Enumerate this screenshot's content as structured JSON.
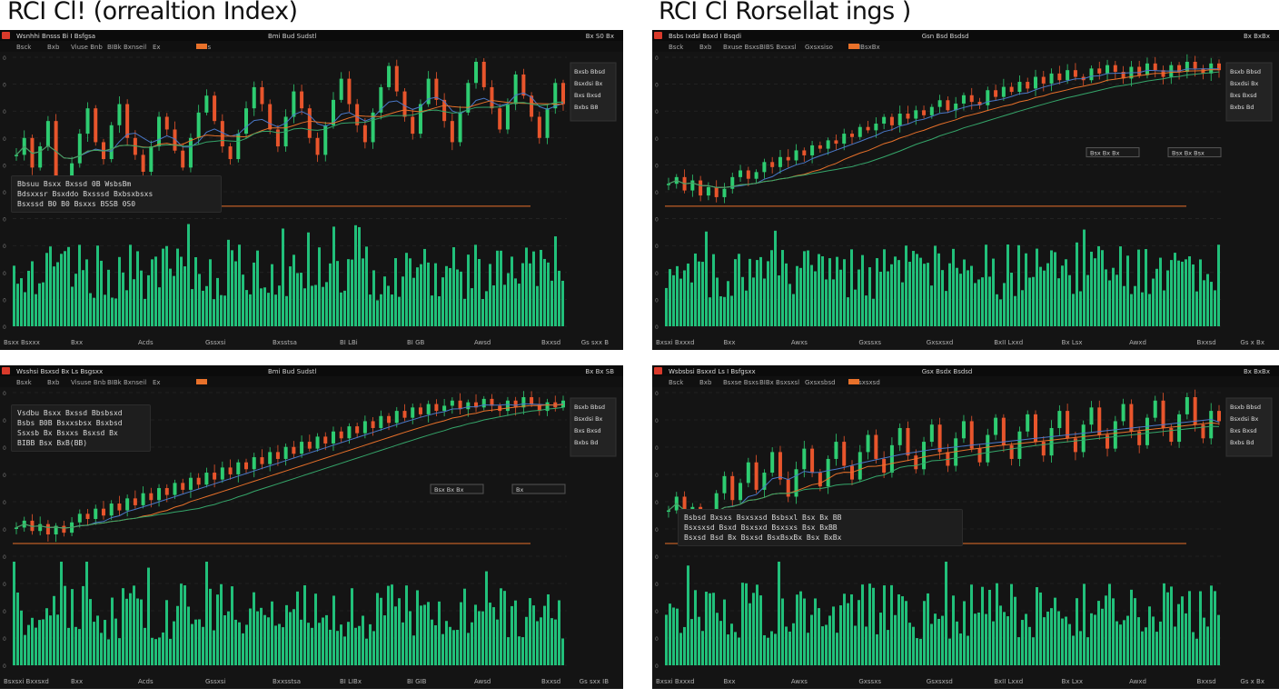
{
  "page": {
    "title_left": "RCI Cl! (orrealtion Index)",
    "title_right": "RCI Cl Rorsellat ings )"
  },
  "colors": {
    "background": "#141414",
    "toolbar": "#0b0b0b",
    "up": "#2ecc71",
    "down": "#e8552c",
    "volume": "#21c07a",
    "ma_blue": "#4a78c8",
    "ma_orange": "#e8712a",
    "ma_yellow": "#d7b33a",
    "ma_green": "#35a66a",
    "grid": "#2a2a2a",
    "accent_badge": "#d93a2b"
  },
  "panels": [
    {
      "header_left": "Wsnhhi Bnsss Bi I Bsfgsa",
      "header_mid": "Bmi Bud Sudstl",
      "header_right": "Bx S0 Bx",
      "toolbar": [
        "Bsck",
        "Bxb",
        "Viuse Bnb",
        "BIBk Bxnseil",
        "Ex",
        "Exls"
      ],
      "xlabels": [
        "Bsxx Bsxxx",
        "Bxx",
        "Acds",
        "Gssxsi",
        "Bxsstsa",
        "BI LBi",
        "BI GB",
        "Awsd",
        "Bxxsd",
        "Gs sxx B"
      ],
      "overlay_lines": [
        "Bbsuu Bsxx  Bxssd 0B WsbsBm",
        "Bdsxxsr Bsxddo  Bxsssd Bxbsxbsxs",
        "Bsxssd B0 B0  Bsxxs BSSB 0S0"
      ],
      "legend_lines": [
        "Bxsb Bbsd",
        "Bsxdsi Bx",
        "Bxs Bxsd",
        "Bxbs B8"
      ]
    },
    {
      "header_left": "Bsbs Ixdsl Bsxd I Bsqdi",
      "header_mid": "Gsn Bsd Bsdsd",
      "header_right": "Bx BxBx",
      "toolbar": [
        "Bsck",
        "Bxb",
        "Bxuse Bsxs",
        "BIBS Bxsxsl",
        "Gxsxsiso",
        "I BIBsxBx"
      ],
      "xlabels": [
        "Bxsxi Bxxxd",
        "Bxx",
        "Awxs",
        "Gxssxs",
        "Gxsxsxd",
        "BxII Lxxd",
        "Bx Lsx",
        "Awxd",
        "Bxxsd",
        "Gs x Bx"
      ],
      "price_labels": [
        "Bsx Bx Bx",
        "Bsx Bx Bsx"
      ],
      "legend_lines": [
        "Bsxb Bbsd",
        "Bsxdsi Bx",
        "Bxs Bxsd",
        "Bxbs Bd"
      ]
    },
    {
      "header_left": "Wsshsi Bsxsd Bx Ls Bsgsxx",
      "header_mid": "Bmi Bud Sudstl",
      "header_right": "Bx Bx SB",
      "toolbar": [
        "Bsxk",
        "Bxb",
        "Visuse Bnb",
        "BIBk Bxnseil",
        "Ex",
        "Gx"
      ],
      "xlabels": [
        "Bsxsxi Bxxsxd",
        "Bxx",
        "Acds",
        "Gssxsi",
        "Bxxsstsa",
        "BI LIBx",
        "BI GIB",
        "Awsd",
        "Bxxsd",
        "Gs sxx IB"
      ],
      "overlay_lines": [
        "Vsdbu Bsxx  Bxssd Bbsbsxd",
        "Bsbs B0B  Bsxxsbsx Bsxbsd",
        "Ssxsb Bx  Bsxxs Bsxsd Bx",
        "BIBB Bsx BxB(BB)"
      ],
      "price_labels": [
        "Bsx Bx Bx",
        "Bx"
      ],
      "legend_lines": [
        "Bsxb Bbsd",
        "Bsxdsi Bx",
        "Bxs Bxsd",
        "Bxbs Bd"
      ]
    },
    {
      "header_left": "Wsbsbsi Bsxxd Ls I Bsfgsxx",
      "header_mid": "Gsx Bsdx Bsdsd",
      "header_right": "Bx BxBx",
      "toolbar": [
        "Bsck",
        "Bxb",
        "Bsxse Bsxs",
        "BIBx Bsxsxsl",
        "Gxsxsbsd",
        "I Bsxsxsd"
      ],
      "xlabels": [
        "Bxsxi Bxxxd",
        "Bxx",
        "Awxs",
        "Gxssxs",
        "Gsxsxsd",
        "BxII Lxxd",
        "Bx Lxx",
        "Awxd",
        "Bxxsd",
        "Gs x Bx"
      ],
      "overlay_lines": [
        "Bsbsd Bxsxs  Bsxsxsd Bsbsxl  Bsx Bx BB",
        "Bsxsxsd Bsxd  Bsxsxd Bsxsxs  Bsx BxBB",
        "Bsxsd Bsd Bx  Bsxsd BsxBsxBx  Bsx BxBx"
      ],
      "legend_lines": [
        "Bsxb Bbsd",
        "Bsxdsi Bx",
        "Bxs Bxsd",
        "Bxbs Bd"
      ]
    }
  ],
  "chart_data": [
    {
      "type": "line",
      "series": [
        {
          "values": [
            58,
            62,
            55,
            60,
            66,
            52,
            48,
            56,
            63,
            69,
            61,
            57,
            65,
            70,
            62,
            58,
            54,
            60,
            67,
            64,
            59,
            55,
            62,
            68,
            72,
            66,
            60,
            57,
            63,
            69,
            74,
            70,
            64,
            60,
            67,
            73,
            69,
            62,
            58,
            65,
            71,
            76,
            70,
            65,
            61,
            68,
            74,
            79,
            73,
            67,
            63,
            70,
            76,
            71,
            66,
            61,
            68,
            75,
            80,
            74,
            69,
            64,
            70,
            77,
            72,
            67,
            62,
            69,
            75,
            70
          ]
        }
      ]
    },
    {
      "type": "line",
      "series": [
        {
          "values": [
            22,
            26,
            18,
            24,
            15,
            20,
            14,
            19,
            26,
            30,
            25,
            29,
            35,
            32,
            38,
            36,
            42,
            39,
            45,
            43,
            48,
            46,
            52,
            50,
            56,
            54,
            58,
            62,
            57,
            64,
            61,
            66,
            63,
            68,
            72,
            66,
            70,
            75,
            71,
            69,
            78,
            74,
            80,
            77,
            83,
            79,
            86,
            82,
            88,
            84,
            90,
            86,
            84,
            91,
            88,
            93,
            89,
            85,
            92,
            87,
            94,
            90,
            86,
            93,
            89,
            95,
            91,
            88,
            94,
            90
          ]
        }
      ]
    },
    {
      "type": "line",
      "series": [
        {
          "values": [
            18,
            22,
            16,
            20,
            14,
            19,
            15,
            21,
            26,
            23,
            29,
            25,
            32,
            28,
            35,
            31,
            38,
            34,
            41,
            37,
            44,
            40,
            47,
            43,
            50,
            46,
            53,
            49,
            56,
            52,
            59,
            55,
            62,
            58,
            65,
            61,
            68,
            64,
            71,
            67,
            74,
            70,
            77,
            73,
            80,
            76,
            83,
            79,
            86,
            82,
            88,
            84,
            90,
            86,
            89,
            92,
            87,
            91,
            88,
            93,
            89,
            86,
            92,
            88,
            94,
            90,
            86,
            91,
            88,
            92
          ]
        }
      ]
    },
    {
      "type": "line",
      "series": [
        {
          "values": [
            62,
            66,
            58,
            63,
            55,
            60,
            67,
            72,
            65,
            70,
            76,
            68,
            73,
            79,
            71,
            66,
            74,
            80,
            73,
            69,
            77,
            82,
            75,
            71,
            79,
            84,
            77,
            73,
            81,
            86,
            78,
            74,
            82,
            87,
            79,
            75,
            83,
            88,
            80,
            76,
            84,
            89,
            81,
            77,
            85,
            90,
            82,
            78,
            86,
            91,
            83,
            79,
            87,
            92,
            84,
            80,
            88,
            93,
            85,
            81,
            89,
            94,
            86,
            82,
            90,
            95,
            87,
            83,
            91,
            88
          ]
        }
      ]
    }
  ]
}
